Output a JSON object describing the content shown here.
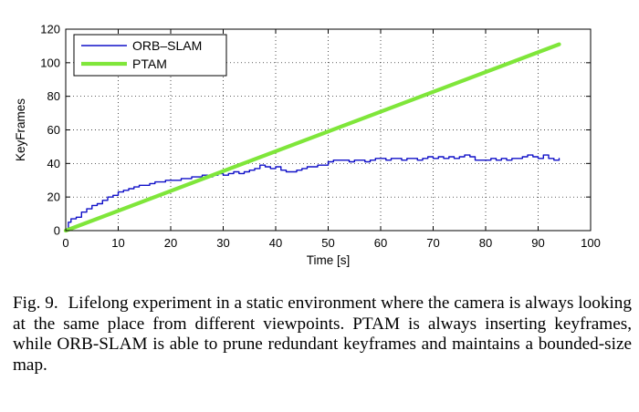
{
  "chart_data": {
    "type": "line",
    "xlabel": "Time [s]",
    "ylabel": "KeyFrames",
    "xlim": [
      0,
      100
    ],
    "ylim": [
      0,
      120
    ],
    "xticks": [
      0,
      10,
      20,
      30,
      40,
      50,
      60,
      70,
      80,
      90,
      100
    ],
    "yticks": [
      0,
      20,
      40,
      60,
      80,
      100,
      120
    ],
    "grid": true,
    "legend_position": "top-left",
    "series": [
      {
        "name": "ORB–SLAM",
        "color": "#1010c8",
        "x": [
          0,
          0.5,
          1,
          2,
          3,
          4,
          5,
          6,
          7,
          8,
          9,
          10,
          11,
          12,
          13,
          14,
          15,
          16,
          17,
          18,
          19,
          20,
          21,
          22,
          23,
          24,
          25,
          26,
          27,
          28,
          29,
          30,
          31,
          32,
          33,
          34,
          35,
          36,
          37,
          38,
          39,
          40,
          41,
          42,
          43,
          44,
          45,
          46,
          47,
          48,
          49,
          50,
          51,
          52,
          53,
          54,
          55,
          56,
          57,
          58,
          59,
          60,
          61,
          62,
          63,
          64,
          65,
          66,
          67,
          68,
          69,
          70,
          71,
          72,
          73,
          74,
          75,
          76,
          77,
          78,
          79,
          80,
          81,
          82,
          83,
          84,
          85,
          86,
          87,
          88,
          89,
          90,
          91,
          92,
          93,
          94
        ],
        "y": [
          0,
          5,
          7,
          8,
          11,
          13,
          15,
          16,
          18,
          20,
          21,
          23,
          24,
          25,
          26,
          27,
          27,
          28,
          29,
          29,
          30,
          30,
          30,
          31,
          31,
          32,
          32,
          33,
          32,
          33,
          34,
          33,
          34,
          35,
          34,
          35,
          36,
          37,
          39,
          38,
          37,
          38,
          36,
          35,
          35,
          36,
          37,
          38,
          38,
          39,
          39,
          41,
          42,
          42,
          42,
          41,
          42,
          42,
          41,
          42,
          43,
          43,
          42,
          43,
          43,
          42,
          43,
          43,
          42,
          43,
          44,
          43,
          44,
          43,
          44,
          43,
          44,
          45,
          44,
          42,
          42,
          42,
          43,
          42,
          43,
          42,
          43,
          43,
          44,
          45,
          44,
          43,
          45,
          43,
          42,
          43
        ]
      },
      {
        "name": "PTAM",
        "color": "#7fe63a",
        "x": [
          0,
          94
        ],
        "y": [
          0,
          111
        ]
      }
    ]
  },
  "caption": {
    "label": "Fig. 9.",
    "text": "Lifelong experiment in a static environment where the camera is always looking at the same place from different viewpoints. PTAM is always inserting keyframes, while ORB-SLAM is able to prune redundant keyframes and maintains a bounded-size map."
  }
}
